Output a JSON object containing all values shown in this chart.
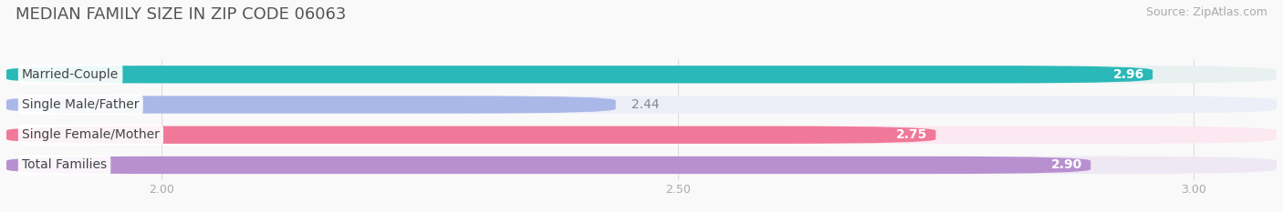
{
  "title": "MEDIAN FAMILY SIZE IN ZIP CODE 06063",
  "source": "Source: ZipAtlas.com",
  "categories": [
    "Married-Couple",
    "Single Male/Father",
    "Single Female/Mother",
    "Total Families"
  ],
  "values": [
    2.96,
    2.44,
    2.75,
    2.9
  ],
  "bar_colors": [
    "#2ab8b8",
    "#aab8e8",
    "#f07898",
    "#b890d0"
  ],
  "bar_bg_colors": [
    "#e8f0f0",
    "#eceef8",
    "#fce8f0",
    "#eee8f4"
  ],
  "label_colors": [
    "#ffffff",
    "#888888",
    "#ffffff",
    "#ffffff"
  ],
  "xlim_min": 1.85,
  "xlim_max": 3.08,
  "data_min": 2.0,
  "xticks": [
    2.0,
    2.5,
    3.0
  ],
  "xtick_labels": [
    "2.00",
    "2.50",
    "3.00"
  ],
  "title_fontsize": 13,
  "source_fontsize": 9,
  "bar_label_fontsize": 10,
  "category_fontsize": 10,
  "title_color": "#555555",
  "background_color": "#f9f9f9"
}
